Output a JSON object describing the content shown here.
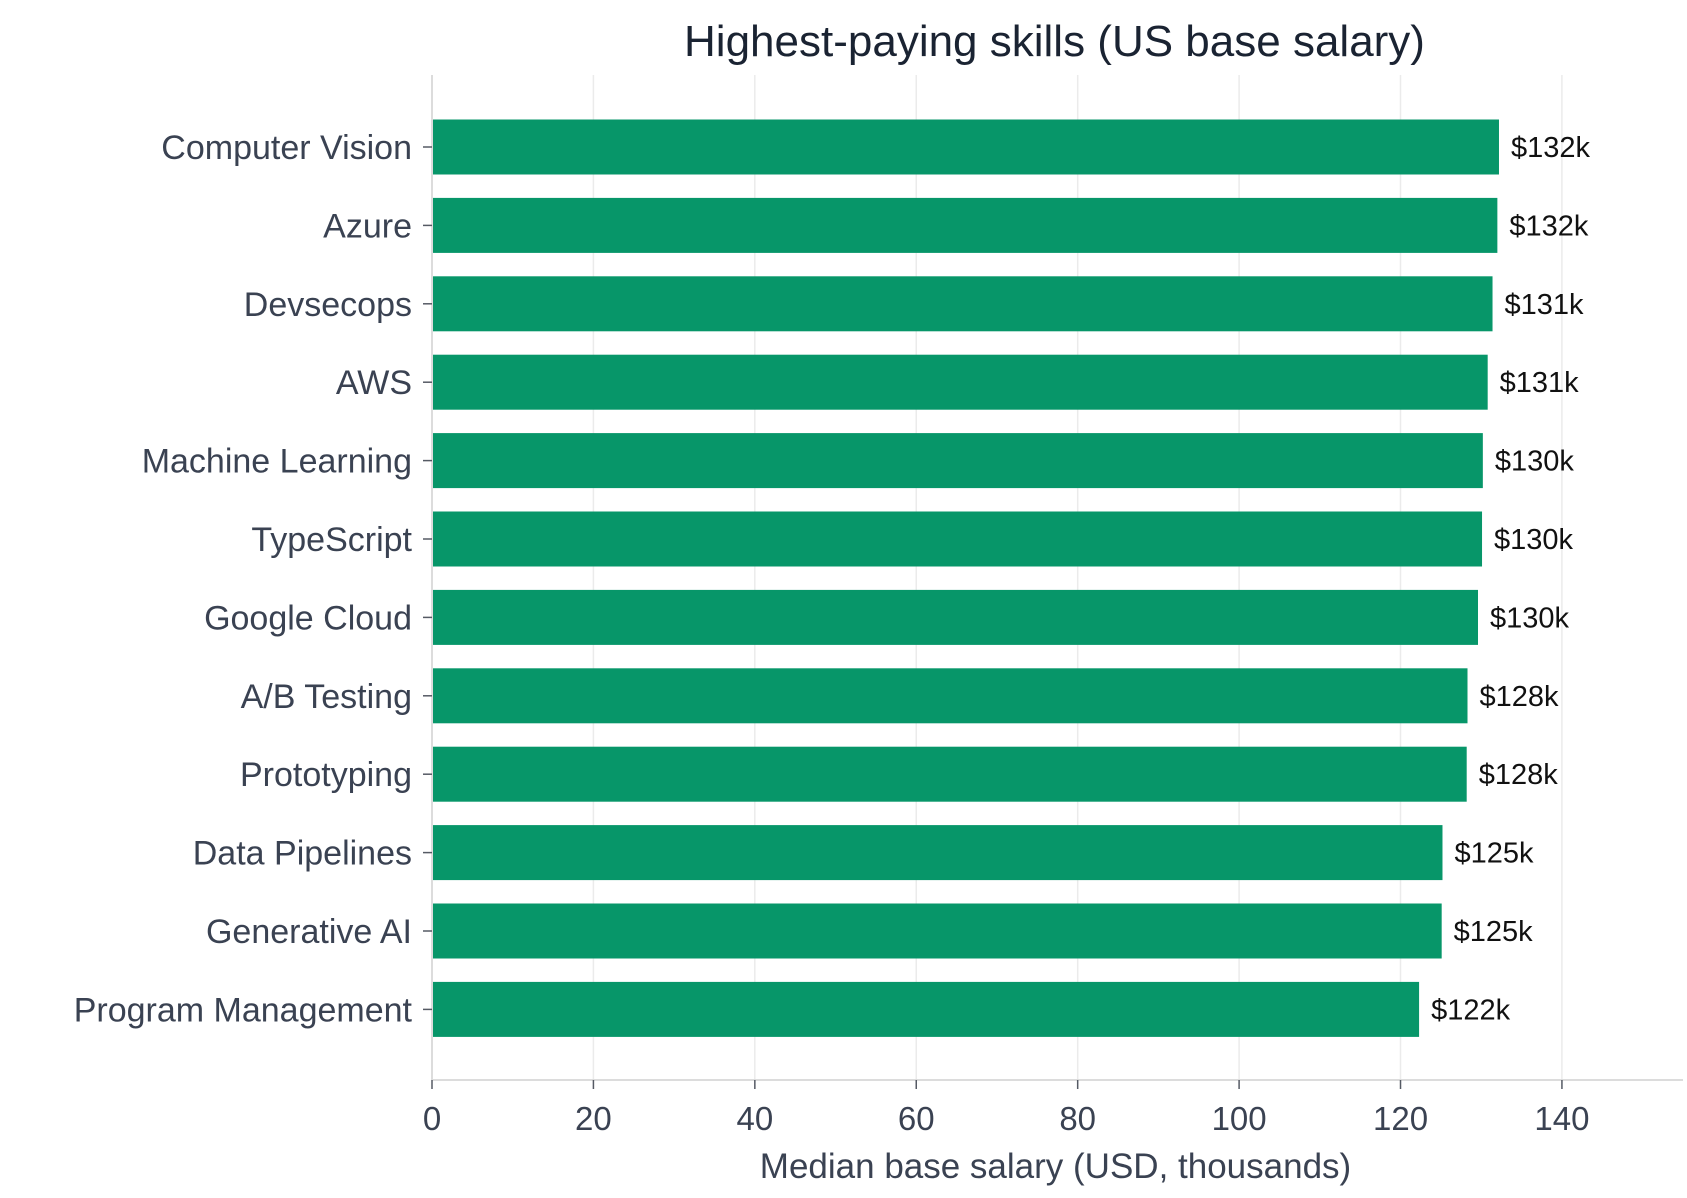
{
  "chart_data": {
    "type": "bar",
    "orientation": "horizontal",
    "title": "Highest-paying skills (US base salary)",
    "xlabel": "Median base salary (USD, thousands)",
    "ylabel": "",
    "xlim": [
      0,
      155
    ],
    "xticks": [
      0,
      20,
      40,
      60,
      80,
      100,
      120,
      140
    ],
    "grid": "vertical",
    "bar_color": "#079669",
    "categories": [
      "Computer Vision",
      "Azure",
      "Devsecops",
      "AWS",
      "Machine Learning",
      "TypeScript",
      "Google Cloud",
      "A/B Testing",
      "Prototyping",
      "Data Pipelines",
      "Generative AI",
      "Program Management"
    ],
    "values": [
      132.2,
      132.0,
      131.4,
      130.8,
      130.2,
      130.1,
      129.6,
      128.3,
      128.2,
      125.2,
      125.1,
      122.3
    ],
    "data_labels": [
      "$132k",
      "$132k",
      "$131k",
      "$131k",
      "$130k",
      "$130k",
      "$130k",
      "$128k",
      "$128k",
      "$125k",
      "$125k",
      "$122k"
    ]
  }
}
